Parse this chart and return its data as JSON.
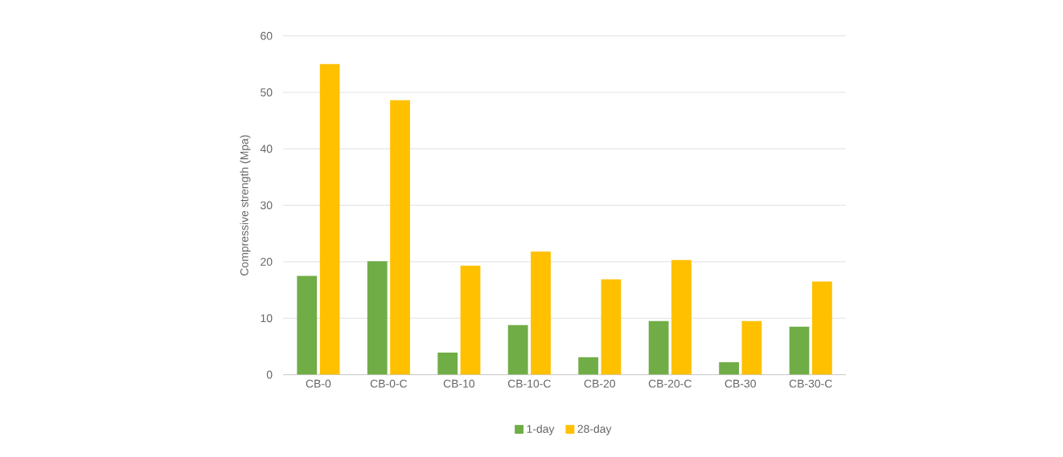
{
  "chart_data": {
    "type": "bar",
    "ylabel": "Compressive strength (Mpa)",
    "categories": [
      "CB-0",
      "CB-0-C",
      "CB-10",
      "CB-10-C",
      "CB-20",
      "CB-20-C",
      "CB-30",
      "CB-30-C"
    ],
    "series": [
      {
        "name": "1-day",
        "color": "#70ad47",
        "values": [
          17.5,
          20.1,
          3.9,
          8.8,
          3.1,
          9.5,
          2.2,
          8.5
        ]
      },
      {
        "name": "28-day",
        "color": "#ffc000",
        "values": [
          55.0,
          48.6,
          19.3,
          21.8,
          16.9,
          20.3,
          9.5,
          16.5
        ]
      }
    ],
    "ylim": [
      0,
      60
    ],
    "yticks": [
      0,
      10,
      20,
      30,
      40,
      50,
      60
    ],
    "grid": "y",
    "legend": "bottom"
  }
}
